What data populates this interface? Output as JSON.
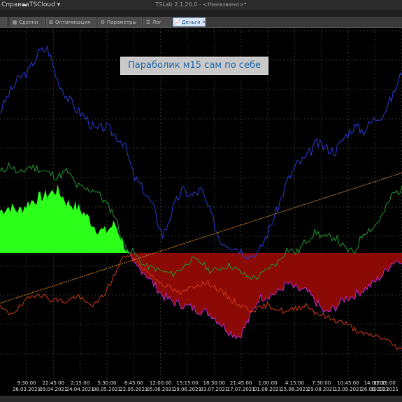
{
  "titlebar": {
    "menu_help": "Справка",
    "cloud": "TSCloud",
    "app_title": "TSLab 2.1.26.0 - <Неназвано>*"
  },
  "tabs": [
    {
      "label": "Сделки",
      "icon": "table-icon"
    },
    {
      "label": "Оптимизация",
      "icon": "grid-icon"
    },
    {
      "label": "Параметры",
      "icon": "gear-icon"
    },
    {
      "label": "Лог",
      "icon": "list-icon"
    },
    {
      "label": "Деньги",
      "icon": "chart-icon",
      "active": true
    }
  ],
  "chart_label": "Параболик м15 сам по себе",
  "colors": {
    "price": "#2b3bd6",
    "equity": "#1f9a2f",
    "other": "#d23a16",
    "trend": "#d08a3a",
    "profit_fill": "#2cff1a",
    "loss_fill": "#8b0a05",
    "loss_edge": "#c02ad6"
  },
  "chart_data": {
    "type": "line",
    "x_ticks": [
      {
        "time": "9:30:00",
        "date": "26.03.2021"
      },
      {
        "time": "22:45:00",
        "date": "09.04.2021"
      },
      {
        "time": "2:15:00",
        "date": "24.04.2021"
      },
      {
        "time": "5:30:00",
        "date": "08.05.2021"
      },
      {
        "time": "8:45:00",
        "date": "22.05.2021"
      },
      {
        "time": "12:00:00",
        "date": "05.06.2021"
      },
      {
        "time": "15:15:00",
        "date": "19.06.2021"
      },
      {
        "time": "18:30:00",
        "date": "03.07.2021"
      },
      {
        "time": "21:45:00",
        "date": "17.07.2021"
      },
      {
        "time": "1:00:00",
        "date": "01.08.2021"
      },
      {
        "time": "4:15:00",
        "date": "15.08.2021"
      },
      {
        "time": "7:30:00",
        "date": "29.08.2021"
      },
      {
        "time": "10:45:00",
        "date": "12.09.2021"
      },
      {
        "time": "14:00:00",
        "date": "26.09.2021"
      },
      {
        "time": "17:15:00",
        "date": "10.10.2021"
      }
    ],
    "series": [
      {
        "key": "blue",
        "values": [
          0.67,
          0.76,
          0.83,
          0.86,
          0.95,
          0.97,
          0.82,
          0.74,
          0.68,
          0.64,
          0.58,
          0.6,
          0.56,
          0.52,
          0.36,
          0.3,
          0.22,
          0.08,
          0.2,
          0.3,
          0.27,
          0.3,
          0.19,
          0.06,
          0.04,
          0.02,
          -0.02,
          0.0,
          0.1,
          0.21,
          0.34,
          0.42,
          0.45,
          0.52,
          0.5,
          0.48,
          0.55,
          0.6,
          0.58,
          0.63,
          0.66,
          0.74,
          0.86
        ]
      },
      {
        "key": "green",
        "values": [
          0.38,
          0.42,
          0.37,
          0.41,
          0.4,
          0.38,
          0.36,
          0.39,
          0.32,
          0.3,
          0.3,
          0.24,
          0.18,
          0.03,
          0.0,
          -0.08,
          -0.1,
          -0.12,
          -0.14,
          -0.1,
          -0.04,
          -0.06,
          -0.12,
          -0.1,
          -0.08,
          -0.12,
          -0.16,
          -0.16,
          -0.1,
          -0.06,
          0.02,
          0.0,
          0.06,
          0.1,
          0.07,
          0.08,
          0.02,
          0.0,
          0.1,
          0.12,
          0.18,
          0.28,
          0.3
        ]
      },
      {
        "key": "red",
        "values": [
          -0.36,
          -0.4,
          -0.36,
          -0.3,
          -0.26,
          -0.3,
          -0.31,
          -0.32,
          -0.28,
          -0.33,
          -0.34,
          -0.26,
          -0.14,
          -0.01,
          -0.04,
          -0.1,
          -0.16,
          -0.2,
          -0.24,
          -0.27,
          -0.22,
          -0.2,
          -0.2,
          -0.25,
          -0.3,
          -0.34,
          -0.37,
          -0.37,
          -0.34,
          -0.37,
          -0.39,
          -0.36,
          -0.34,
          -0.39,
          -0.42,
          -0.44,
          -0.46,
          -0.5,
          -0.54,
          -0.54,
          -0.56,
          -0.6,
          -0.64
        ]
      },
      {
        "key": "orange",
        "values": [
          -0.33,
          0.38
        ]
      },
      {
        "key": "fill",
        "values": [
          0.2,
          0.22,
          0.2,
          0.24,
          0.26,
          0.28,
          0.3,
          0.24,
          0.22,
          0.18,
          0.12,
          0.1,
          0.14,
          0.04,
          -0.08,
          -0.12,
          -0.2,
          -0.28,
          -0.32,
          -0.34,
          -0.36,
          -0.38,
          -0.4,
          -0.46,
          -0.52,
          -0.55,
          -0.44,
          -0.3,
          -0.28,
          -0.26,
          -0.2,
          -0.24,
          -0.25,
          -0.32,
          -0.4,
          -0.36,
          -0.3,
          -0.28,
          -0.24,
          -0.2,
          -0.14,
          -0.06,
          -0.04
        ]
      }
    ],
    "ylim": [
      -0.7,
      1.0
    ],
    "grid": true
  }
}
